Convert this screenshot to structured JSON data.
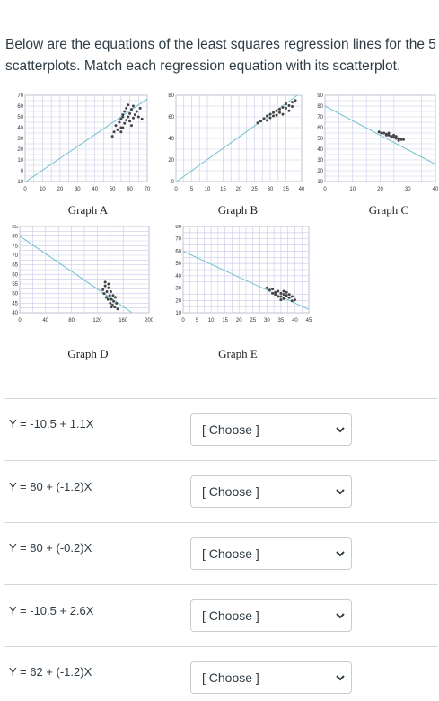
{
  "question": {
    "line1": "Below are the equations of the least squares regression lines for the 5",
    "line2": "scatterplots. Match each regression equation with its scatterplot."
  },
  "graphs": [
    {
      "caption": "Graph A",
      "chart_data": {
        "type": "scatter",
        "xticks": [
          "0",
          "10",
          "20",
          "30",
          "40",
          "50",
          "60",
          "70"
        ],
        "yticks": [
          "-10",
          "0",
          "10",
          "20",
          "30",
          "40",
          "50",
          "60",
          "70"
        ],
        "xlim": [
          0,
          70
        ],
        "ylim": [
          -10,
          70
        ],
        "points": [
          [
            50,
            32
          ],
          [
            51,
            36
          ],
          [
            52,
            42
          ],
          [
            53,
            38
          ],
          [
            54,
            45
          ],
          [
            55,
            40
          ],
          [
            55,
            48
          ],
          [
            56,
            50
          ],
          [
            56,
            52
          ],
          [
            57,
            44
          ],
          [
            57,
            55
          ],
          [
            58,
            58
          ],
          [
            58,
            47
          ],
          [
            59,
            50
          ],
          [
            59,
            61
          ],
          [
            60,
            53
          ],
          [
            60,
            46
          ],
          [
            61,
            57
          ],
          [
            61,
            42
          ],
          [
            62,
            49
          ],
          [
            62,
            60
          ],
          [
            63,
            52
          ],
          [
            64,
            55
          ],
          [
            65,
            50
          ],
          [
            66,
            58
          ],
          [
            67,
            48
          ],
          [
            55,
            36
          ],
          [
            56,
            40
          ]
        ],
        "line": {
          "intercept": -10.5,
          "slope": 1.1
        }
      }
    },
    {
      "caption": "Graph B",
      "chart_data": {
        "type": "scatter",
        "xticks": [
          "0",
          "5",
          "10",
          "15",
          "20",
          "25",
          "30",
          "35",
          "40"
        ],
        "yticks": [
          "0",
          "20",
          "40",
          "60",
          "80"
        ],
        "xlim": [
          0,
          40
        ],
        "ylim": [
          -10,
          90
        ],
        "points": [
          [
            26,
            58
          ],
          [
            27,
            60
          ],
          [
            28,
            63
          ],
          [
            29,
            61
          ],
          [
            29,
            66
          ],
          [
            30,
            64
          ],
          [
            30,
            68
          ],
          [
            31,
            70
          ],
          [
            31,
            66
          ],
          [
            32,
            72
          ],
          [
            33,
            74
          ],
          [
            33,
            70
          ],
          [
            34,
            76
          ],
          [
            35,
            75
          ],
          [
            35,
            80
          ],
          [
            36,
            78
          ],
          [
            37,
            82
          ],
          [
            37,
            77
          ],
          [
            38,
            84
          ],
          [
            36,
            72
          ],
          [
            34,
            68
          ],
          [
            32,
            67
          ]
        ],
        "line": {
          "intercept": -10.5,
          "slope": 2.6
        }
      }
    },
    {
      "caption": "Graph C",
      "chart_data": {
        "type": "scatter",
        "xticks": [
          "0",
          "10",
          "20",
          "30",
          "40"
        ],
        "yticks": [
          "10",
          "20",
          "30",
          "40",
          "50",
          "60",
          "70",
          "80",
          "90"
        ],
        "xlim": [
          0,
          45
        ],
        "ylim": [
          10,
          90
        ],
        "points": [
          [
            22,
            56
          ],
          [
            23,
            55
          ],
          [
            24,
            55
          ],
          [
            25,
            54
          ],
          [
            25,
            53
          ],
          [
            26,
            53
          ],
          [
            27,
            52
          ],
          [
            27,
            51
          ],
          [
            28,
            51
          ],
          [
            29,
            50
          ],
          [
            29,
            52
          ],
          [
            30,
            50
          ],
          [
            31,
            49
          ],
          [
            32,
            49
          ],
          [
            26,
            55
          ],
          [
            28,
            53
          ],
          [
            30,
            48
          ]
        ],
        "line": {
          "intercept": 80,
          "slope": -1.2
        }
      }
    },
    {
      "caption": "Graph D",
      "chart_data": {
        "type": "scatter",
        "xticks": [
          "0",
          "40",
          "80",
          "120",
          "160",
          "200"
        ],
        "yticks": [
          "40",
          "45",
          "50",
          "55",
          "60",
          "65",
          "70",
          "75",
          "80",
          "85"
        ],
        "xlim": [
          0,
          230
        ],
        "ylim": [
          40,
          85
        ],
        "points": [
          [
            148,
            52
          ],
          [
            150,
            50
          ],
          [
            152,
            54
          ],
          [
            154,
            48
          ],
          [
            155,
            51
          ],
          [
            157,
            47
          ],
          [
            158,
            53
          ],
          [
            160,
            49
          ],
          [
            161,
            45
          ],
          [
            162,
            51
          ],
          [
            163,
            47
          ],
          [
            165,
            44
          ],
          [
            166,
            49
          ],
          [
            167,
            46
          ],
          [
            169,
            43
          ],
          [
            170,
            48
          ],
          [
            172,
            45
          ],
          [
            174,
            42
          ],
          [
            152,
            56
          ],
          [
            158,
            55
          ],
          [
            163,
            43
          ]
        ],
        "line": {
          "intercept": 80,
          "slope": -0.2
        }
      }
    },
    {
      "caption": "Graph E",
      "chart_data": {
        "type": "scatter",
        "xticks": [
          "0",
          "5",
          "10",
          "15",
          "20",
          "25",
          "30",
          "35",
          "40",
          "45"
        ],
        "yticks": [
          "10",
          "20",
          "30",
          "40",
          "50",
          "60",
          "70",
          "80"
        ],
        "xlim": [
          0,
          45
        ],
        "ylim": [
          5,
          85
        ],
        "points": [
          [
            30,
            28
          ],
          [
            31,
            26
          ],
          [
            32,
            27
          ],
          [
            33,
            24
          ],
          [
            33,
            22
          ],
          [
            34,
            25
          ],
          [
            35,
            23
          ],
          [
            35,
            20
          ],
          [
            36,
            22
          ],
          [
            36,
            18
          ],
          [
            37,
            21
          ],
          [
            37,
            24
          ],
          [
            38,
            19
          ],
          [
            39,
            20
          ],
          [
            40,
            17
          ],
          [
            34,
            20
          ],
          [
            36,
            25
          ],
          [
            38,
            22
          ],
          [
            39,
            16
          ],
          [
            32,
            23
          ],
          [
            35,
            17
          ]
        ],
        "line": {
          "intercept": 62,
          "slope": -1.2
        }
      }
    }
  ],
  "rows": [
    {
      "equation": "Y = -10.5 + 1.1X",
      "select": "[ Choose ]"
    },
    {
      "equation": "Y = 80 + (-1.2)X",
      "select": "[ Choose ]"
    },
    {
      "equation": "Y = 80 + (-0.2)X",
      "select": "[ Choose ]"
    },
    {
      "equation": "Y = -10.5 + 2.6X",
      "select": "[ Choose ]"
    },
    {
      "equation": "Y = 62 + (-1.2)X",
      "select": "[ Choose ]"
    }
  ],
  "colors": {
    "grid": "#c9c9e8",
    "axis": "#222222",
    "fit_line": "#6fc1cf",
    "point": "#444444"
  }
}
